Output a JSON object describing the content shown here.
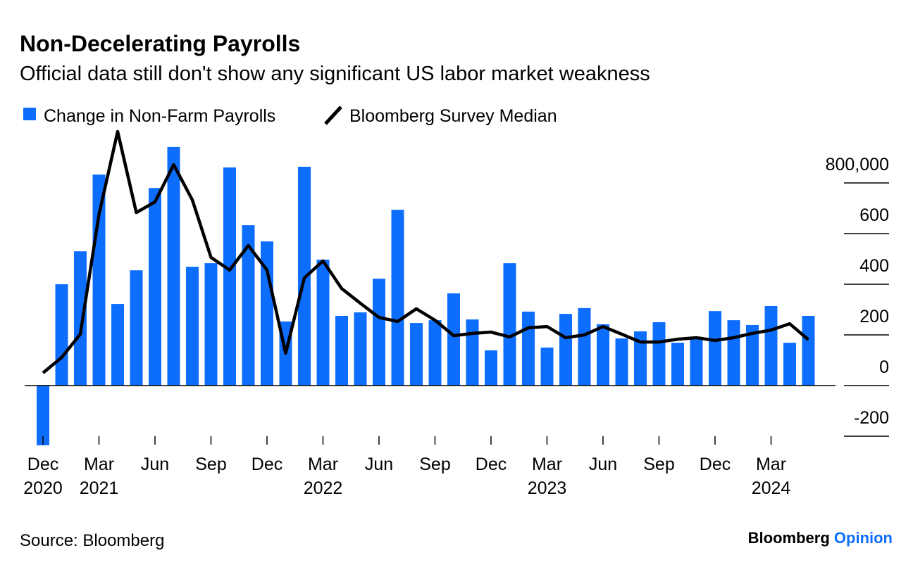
{
  "chart_data": {
    "type": "bar_line",
    "title": "Non-Decelerating Payrolls",
    "subtitle": "Official data still don't show any significant US labor market weakness",
    "source": "Source: Bloomberg",
    "brand": [
      "Bloomberg",
      "Opinion"
    ],
    "categories": [
      "Dec",
      null,
      null,
      "Mar",
      null,
      null,
      "Jun",
      null,
      null,
      "Sep",
      null,
      null,
      "Dec",
      null,
      null,
      "Mar",
      null,
      null,
      "Jun",
      null,
      null,
      "Sep",
      null,
      null,
      "Dec",
      null,
      null,
      "Mar",
      null,
      null,
      "Jun",
      null,
      null,
      "Sep",
      null,
      null,
      "Dec",
      null,
      null,
      "Mar",
      null,
      null
    ],
    "category_years": [
      "2020",
      null,
      null,
      "2021",
      null,
      null,
      null,
      null,
      null,
      null,
      null,
      null,
      null,
      null,
      null,
      "2022",
      null,
      null,
      null,
      null,
      null,
      null,
      null,
      null,
      null,
      null,
      null,
      "2023",
      null,
      null,
      null,
      null,
      null,
      null,
      null,
      null,
      null,
      null,
      null,
      "2024",
      null,
      null
    ],
    "series": [
      {
        "name": "Change in Non-Farm Payrolls",
        "kind": "bar",
        "color": "#0d6efd",
        "values": [
          -236000,
          400000,
          530000,
          833000,
          322000,
          455000,
          780000,
          942000,
          469000,
          483000,
          861000,
          633000,
          569000,
          253000,
          864000,
          497000,
          275000,
          289000,
          422000,
          694000,
          247000,
          258000,
          364000,
          261000,
          139000,
          483000,
          292000,
          150000,
          283000,
          306000,
          242000,
          186000,
          214000,
          250000,
          169000,
          189000,
          294000,
          258000,
          239000,
          314000,
          169000,
          275000
        ]
      },
      {
        "name": "Bloomberg Survey Median",
        "kind": "line",
        "color": "#000000",
        "values": [
          50000,
          111000,
          203000,
          675000,
          1003000,
          683000,
          725000,
          872000,
          733000,
          506000,
          456000,
          553000,
          456000,
          128000,
          425000,
          492000,
          383000,
          325000,
          269000,
          253000,
          303000,
          258000,
          197000,
          206000,
          211000,
          192000,
          228000,
          233000,
          189000,
          200000,
          233000,
          203000,
          172000,
          172000,
          183000,
          189000,
          178000,
          189000,
          206000,
          219000,
          244000,
          181000
        ]
      }
    ],
    "ylim": [
      -250000,
      1050000
    ],
    "yticks": [
      {
        "value": 800000,
        "label": "800,000"
      },
      {
        "value": 600000,
        "label": "600"
      },
      {
        "value": 400000,
        "label": "400"
      },
      {
        "value": 200000,
        "label": "200"
      },
      0,
      {
        "value": -200000,
        "label": "-200"
      }
    ]
  }
}
